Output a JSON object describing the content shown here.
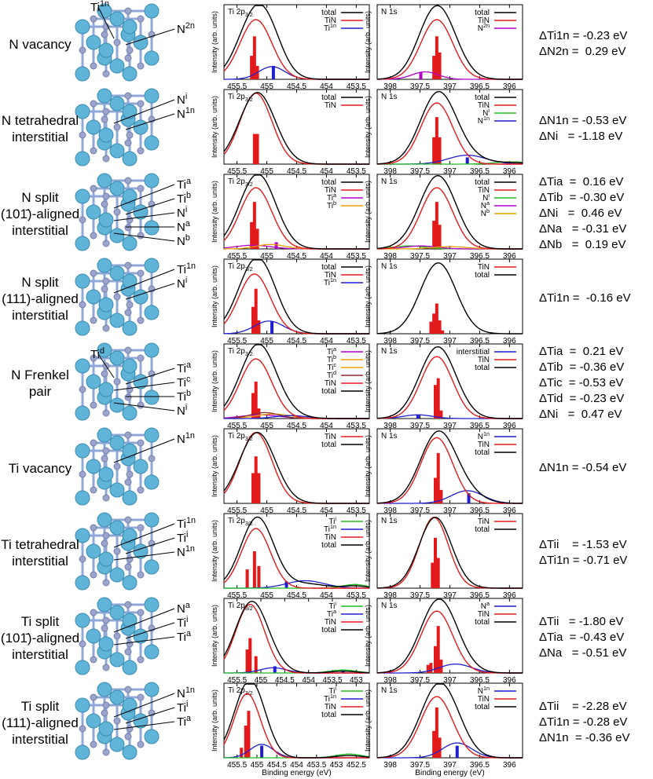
{
  "figure": {
    "xlabel": "Binding energy (eV)",
    "ylabel": "Intensity (arb. units)",
    "ti_panel_title": "Ti 2p3/2",
    "n_panel_title": "N 1s"
  },
  "rows": [
    {
      "label": [
        "N vacancy"
      ],
      "struct_labels": [
        "Ti1n",
        "N2n"
      ],
      "ti": {
        "legend": [
          "total",
          "TiN",
          "Ti1n"
        ],
        "ticks": [
          "455.5",
          "455",
          "454.5",
          "454",
          "453.5"
        ]
      },
      "n": {
        "legend": [
          "total",
          "TiN",
          "N2n"
        ],
        "ticks": [
          "398",
          "397.5",
          "397",
          "396.5",
          "396"
        ]
      },
      "shifts": [
        "ΔTi1n = -0.23 eV",
        "ΔN2n =  0.29 eV"
      ]
    },
    {
      "label": [
        "N tetrahedral",
        "interstitial"
      ],
      "struct_labels": [
        "Ni",
        "N1n"
      ],
      "ti": {
        "legend": [
          "total",
          "TiN"
        ],
        "ticks": [
          "455.5",
          "455",
          "454.5",
          "454",
          "453.5"
        ]
      },
      "n": {
        "legend": [
          "total",
          "TiN",
          "Ni",
          "N1n"
        ],
        "ticks": [
          "398",
          "397.5",
          "397",
          "396.5",
          "396"
        ]
      },
      "shifts": [
        "ΔN1n = -0.53 eV",
        "ΔNi   = -1.18 eV"
      ]
    },
    {
      "label": [
        "N split",
        "(101̄)-aligned",
        "interstitial"
      ],
      "struct_labels": [
        "Tia",
        "Tib",
        "Ni",
        "Na",
        "Nb"
      ],
      "ti": {
        "legend": [
          "total",
          "TiN",
          "Tia",
          "Tib"
        ],
        "ticks": [
          "455.5",
          "455",
          "454.5",
          "454",
          "453.5"
        ]
      },
      "n": {
        "legend": [
          "total",
          "TiN",
          "Ni",
          "Na",
          "Nb"
        ],
        "ticks": [
          "398",
          "397.5",
          "397",
          "396.5",
          "396"
        ]
      },
      "shifts": [
        "ΔTia  =  0.16 eV",
        "ΔTib  = -0.30 eV",
        "ΔNi   =  0.46 eV",
        "ΔNa   = -0.31 eV",
        "ΔNb   =  0.19 eV"
      ]
    },
    {
      "label": [
        "N split",
        "(111)-aligned",
        "interstitial"
      ],
      "struct_labels": [
        "Ti1n",
        "Ni"
      ],
      "ti": {
        "legend": [
          "total",
          "TiN",
          "Ti1n"
        ],
        "ticks": [
          "455.5",
          "455",
          "454.5",
          "454",
          "453.5"
        ]
      },
      "n": {
        "legend": [
          "TiN",
          "total"
        ],
        "ticks": [
          "398",
          "397.5",
          "397",
          "396.5",
          "396"
        ]
      },
      "shifts": [
        "ΔTi1n =  -0.16 eV"
      ]
    },
    {
      "label": [
        "N Frenkel",
        "pair"
      ],
      "struct_labels": [
        "Tid",
        "Tia",
        "Tic",
        "Tib",
        "Ni"
      ],
      "ti": {
        "legend": [
          "Tia",
          "Tib",
          "Tic",
          "Tid",
          "TiN",
          "total"
        ],
        "ticks": [
          "455.5",
          "455",
          "454.5",
          "454",
          "453.5"
        ]
      },
      "n": {
        "legend": [
          "interstitial",
          "TiN",
          "total"
        ],
        "ticks": [
          "398",
          "397.5",
          "397",
          "396.5",
          "396"
        ]
      },
      "shifts": [
        "ΔTia  =  0.21 eV",
        "ΔTib  = -0.36 eV",
        "ΔTic  = -0.53 eV",
        "ΔTid  = -0.23 eV",
        "ΔNi   =  0.47 eV"
      ]
    },
    {
      "label": [
        "Ti vacancy"
      ],
      "struct_labels": [
        "N1n"
      ],
      "ti": {
        "legend": [
          "TiN",
          "total"
        ],
        "ticks": [
          "455.5",
          "455",
          "454.5",
          "454",
          "453.5"
        ]
      },
      "n": {
        "legend": [
          "N1n",
          "TiN",
          "total"
        ],
        "ticks": [
          "398",
          "397.5",
          "397",
          "396.5",
          "396"
        ]
      },
      "shifts": [
        "ΔN1n = -0.54 eV"
      ]
    },
    {
      "label": [
        "Ti tetrahedral",
        "interstitial"
      ],
      "struct_labels": [
        "Ti1n",
        "Tii",
        "N1n"
      ],
      "ti": {
        "legend": [
          "Tii",
          "Ti1n",
          "TiN",
          "total"
        ],
        "ticks": [
          "455.5",
          "455",
          "454.5",
          "454",
          "453.5"
        ]
      },
      "n": {
        "legend": [
          "TiN",
          "total"
        ],
        "ticks": [
          "398",
          "397.5",
          "397",
          "396.5",
          "396"
        ]
      },
      "shifts": [
        "ΔTii    = -1.53 eV",
        "ΔTi1n = -0.71 eV"
      ]
    },
    {
      "label": [
        "Ti split",
        "(101̄)-aligned",
        "interstitial"
      ],
      "struct_labels": [
        "Na",
        "Tii",
        "Tia"
      ],
      "ti": {
        "legend": [
          "Tii",
          "Tia",
          "TiN",
          "total"
        ],
        "ticks": [
          "455.5",
          "455",
          "454.5",
          "454",
          "453.5",
          "453"
        ]
      },
      "n": {
        "legend": [
          "Na",
          "TiN",
          "total"
        ],
        "ticks": [
          "398",
          "397.5",
          "397",
          "396.5",
          "396"
        ]
      },
      "shifts": [
        "ΔTii   = -1.80 eV",
        "ΔTia  = -0.43 eV",
        "ΔNa   = -0.51 eV"
      ]
    },
    {
      "label": [
        "Ti split",
        "(111)-aligned",
        "interstitial"
      ],
      "struct_labels": [
        "N1n",
        "Tii",
        "Tia"
      ],
      "ti": {
        "legend": [
          "Tii",
          "Ti1n",
          "TiN",
          "total"
        ],
        "ticks": [
          "455.5",
          "455",
          "454.5",
          "454",
          "453.5",
          "453",
          "452.5"
        ]
      },
      "n": {
        "legend": [
          "N1n",
          "TiN",
          "total"
        ],
        "ticks": [
          "398",
          "397.5",
          "397",
          "396.5",
          "396"
        ]
      },
      "shifts": [
        "ΔTii    = -2.28 eV",
        "ΔTi1n = -0.28 eV",
        "ΔN1n  = -0.36 eV"
      ]
    }
  ],
  "chart_data": {
    "type": "line",
    "title": "",
    "xlabel": "Binding energy (eV)",
    "ylabel": "Intensity (arb. units)",
    "x_reversed": true,
    "ti_xlim": [
      455.9,
      453.4
    ],
    "n_xlim": [
      398.3,
      395.7
    ],
    "colors": {
      "total": "#000000",
      "TiN": "#e31a1c",
      "blue": "#1f1fd0",
      "green": "#22bb22",
      "magenta": "#b000c8",
      "orange": "#e8a000",
      "brown": "#8b2a2a"
    }
  }
}
